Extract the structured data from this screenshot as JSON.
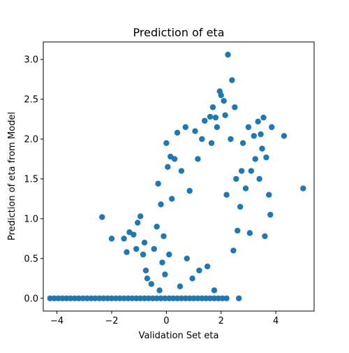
{
  "chart_data": {
    "type": "scatter",
    "title": "Prediction of eta",
    "xlabel": "Validation Set eta",
    "ylabel": "Prediction of eta from Model",
    "xlim": [
      -4.5,
      5.4
    ],
    "ylim": [
      -0.16,
      3.22
    ],
    "xticks": [
      -4,
      -2,
      0,
      2,
      4
    ],
    "xtick_labels": [
      "−4",
      "−2",
      "0",
      "2",
      "4"
    ],
    "yticks": [
      0.0,
      0.5,
      1.0,
      1.5,
      2.0,
      2.5,
      3.0
    ],
    "ytick_labels": [
      "0.0",
      "0.5",
      "1.0",
      "1.5",
      "2.0",
      "2.5",
      "3.0"
    ],
    "grid": false,
    "marker_color": "#1f77b4",
    "series": [
      {
        "points": [
          [
            -4.25,
            0.0
          ],
          [
            -4.1,
            0.0
          ],
          [
            -3.95,
            0.0
          ],
          [
            -3.8,
            0.0
          ],
          [
            -3.65,
            0.0
          ],
          [
            -3.5,
            0.0
          ],
          [
            -3.35,
            0.0
          ],
          [
            -3.2,
            0.0
          ],
          [
            -3.05,
            0.0
          ],
          [
            -2.9,
            0.0
          ],
          [
            -2.75,
            0.0
          ],
          [
            -2.6,
            0.0
          ],
          [
            -2.45,
            0.0
          ],
          [
            -2.3,
            0.0
          ],
          [
            -2.15,
            0.0
          ],
          [
            -2.0,
            0.0
          ],
          [
            -1.85,
            0.0
          ],
          [
            -1.7,
            0.0
          ],
          [
            -1.55,
            0.0
          ],
          [
            -1.4,
            0.0
          ],
          [
            -1.25,
            0.0
          ],
          [
            -1.1,
            0.0
          ],
          [
            -0.95,
            0.0
          ],
          [
            -0.8,
            0.0
          ],
          [
            -0.65,
            0.0
          ],
          [
            -0.5,
            0.0
          ],
          [
            -0.35,
            0.0
          ],
          [
            -0.2,
            0.0
          ],
          [
            -0.05,
            0.0
          ],
          [
            0.1,
            0.0
          ],
          [
            0.25,
            0.0
          ],
          [
            0.4,
            0.0
          ],
          [
            0.55,
            0.0
          ],
          [
            0.7,
            0.0
          ],
          [
            0.85,
            0.0
          ],
          [
            1.0,
            0.0
          ],
          [
            1.15,
            0.0
          ],
          [
            1.3,
            0.0
          ],
          [
            1.45,
            0.0
          ],
          [
            1.6,
            0.0
          ],
          [
            1.75,
            0.0
          ],
          [
            1.9,
            0.0
          ],
          [
            2.05,
            0.0
          ],
          [
            2.2,
            0.0
          ],
          [
            2.65,
            0.0
          ],
          [
            -2.35,
            1.02
          ],
          [
            -2.0,
            0.75
          ],
          [
            -1.55,
            0.75
          ],
          [
            -1.45,
            0.58
          ],
          [
            -1.35,
            0.83
          ],
          [
            -1.2,
            0.8
          ],
          [
            -1.1,
            0.62
          ],
          [
            -1.05,
            0.95
          ],
          [
            -0.95,
            1.03
          ],
          [
            -0.85,
            0.55
          ],
          [
            -0.8,
            0.7
          ],
          [
            -0.75,
            0.35
          ],
          [
            -0.7,
            0.25
          ],
          [
            -0.55,
            0.18
          ],
          [
            -0.45,
            0.62
          ],
          [
            -0.35,
            0.9
          ],
          [
            -0.3,
            1.44
          ],
          [
            -0.25,
            0.1
          ],
          [
            -0.2,
            1.18
          ],
          [
            -0.15,
            0.45
          ],
          [
            -0.1,
            0.78
          ],
          [
            -0.05,
            0.3
          ],
          [
            0.0,
            1.95
          ],
          [
            0.05,
            1.65
          ],
          [
            0.1,
            0.55
          ],
          [
            0.15,
            1.78
          ],
          [
            0.2,
            1.25
          ],
          [
            0.3,
            1.75
          ],
          [
            0.4,
            2.08
          ],
          [
            0.5,
            0.15
          ],
          [
            0.55,
            1.6
          ],
          [
            0.7,
            2.15
          ],
          [
            0.75,
            0.5
          ],
          [
            0.85,
            1.35
          ],
          [
            0.95,
            0.25
          ],
          [
            1.05,
            2.1
          ],
          [
            1.15,
            1.75
          ],
          [
            1.2,
            0.35
          ],
          [
            1.3,
            2.0
          ],
          [
            1.4,
            2.23
          ],
          [
            1.5,
            0.4
          ],
          [
            1.6,
            2.28
          ],
          [
            1.65,
            1.95
          ],
          [
            1.7,
            2.4
          ],
          [
            1.75,
            0.1
          ],
          [
            1.8,
            2.27
          ],
          [
            1.85,
            2.15
          ],
          [
            1.95,
            2.6
          ],
          [
            2.0,
            2.55
          ],
          [
            2.1,
            2.48
          ],
          [
            2.15,
            2.3
          ],
          [
            2.2,
            1.3
          ],
          [
            2.25,
            3.06
          ],
          [
            2.35,
            2.0
          ],
          [
            2.4,
            2.74
          ],
          [
            2.45,
            0.6
          ],
          [
            2.5,
            2.4
          ],
          [
            2.55,
            1.5
          ],
          [
            2.6,
            0.85
          ],
          [
            2.7,
            1.15
          ],
          [
            2.75,
            1.6
          ],
          [
            2.8,
            1.95
          ],
          [
            2.9,
            1.38
          ],
          [
            3.0,
            2.15
          ],
          [
            3.05,
            0.82
          ],
          [
            3.1,
            1.6
          ],
          [
            3.2,
            2.04
          ],
          [
            3.25,
            1.75
          ],
          [
            3.35,
            2.22
          ],
          [
            3.4,
            1.5
          ],
          [
            3.45,
            2.06
          ],
          [
            3.5,
            1.88
          ],
          [
            3.55,
            2.27
          ],
          [
            3.6,
            0.78
          ],
          [
            3.65,
            1.77
          ],
          [
            3.75,
            1.3
          ],
          [
            3.8,
            1.05
          ],
          [
            3.85,
            2.15
          ],
          [
            4.3,
            2.04
          ],
          [
            5.0,
            1.38
          ]
        ]
      }
    ]
  }
}
